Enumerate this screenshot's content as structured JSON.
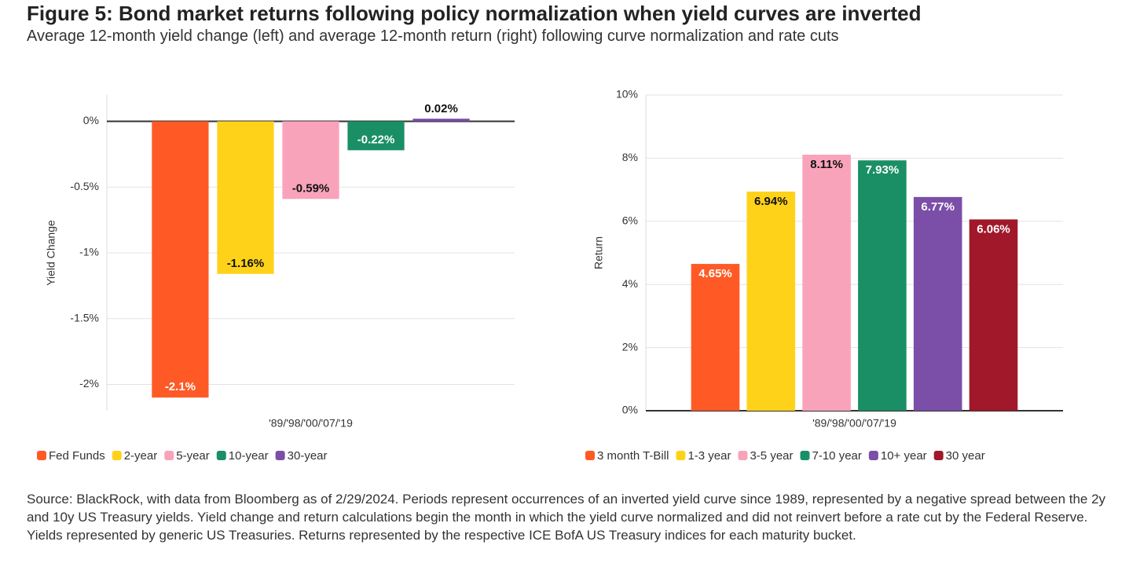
{
  "title": "Figure 5: Bond market returns following policy normalization when yield curves are inverted",
  "subtitle": "Average 12-month yield change (left) and average 12-month return (right) following curve normalization and rate cuts",
  "source": "Source: BlackRock, with data from Bloomberg as of 2/29/2024. Periods represent occurrences of an inverted yield curve since 1989, represented by a negative spread between the 2y and 10y US Treasury yields. Yield change and return calculations begin the month in which the yield curve normalized and did not reinvert before a rate cut by the Federal Reserve. Yields represented by generic US Treasuries. Returns represented by the respective ICE BofA US Treasury indices for each maturity bucket.",
  "chart_data": [
    {
      "type": "bar",
      "y_label": "Yield Change",
      "categories": [
        "'89/'98/'00/'07/'19"
      ],
      "series": [
        {
          "name": "Fed Funds",
          "color": "#ff5a26",
          "values": [
            -2.1
          ],
          "value_labels": [
            "-2.1%"
          ]
        },
        {
          "name": "2-year",
          "color": "#ffd21a",
          "values": [
            -1.16
          ],
          "value_labels": [
            "-1.16%"
          ]
        },
        {
          "name": "5-year",
          "color": "#f9a3bb",
          "values": [
            -0.59
          ],
          "value_labels": [
            "-0.59%"
          ]
        },
        {
          "name": "10-year",
          "color": "#1a8f66",
          "values": [
            -0.22
          ],
          "value_labels": [
            "-0.22%"
          ]
        },
        {
          "name": "30-year",
          "color": "#7b4ea8",
          "values": [
            0.02
          ],
          "value_labels": [
            "0.02%"
          ]
        }
      ],
      "ylim": [
        -2.2,
        0.2
      ],
      "yticks": [
        {
          "value": 0,
          "label": "0%"
        },
        {
          "value": -0.5,
          "label": "-0.5%"
        },
        {
          "value": -1,
          "label": "-1%"
        },
        {
          "value": -1.5,
          "label": "-1.5%"
        },
        {
          "value": -2,
          "label": "-2%"
        }
      ],
      "grid": true
    },
    {
      "type": "bar",
      "y_label": "Return",
      "categories": [
        "'89/'98/'00/'07/'19"
      ],
      "series": [
        {
          "name": "3 month T-Bill",
          "color": "#ff5a26",
          "values": [
            4.65
          ],
          "value_labels": [
            "4.65%"
          ]
        },
        {
          "name": "1-3 year",
          "color": "#ffd21a",
          "values": [
            6.94
          ],
          "value_labels": [
            "6.94%"
          ]
        },
        {
          "name": "3-5 year",
          "color": "#f9a3bb",
          "values": [
            8.11
          ],
          "value_labels": [
            "8.11%"
          ]
        },
        {
          "name": "7-10 year",
          "color": "#1a8f66",
          "values": [
            7.93
          ],
          "value_labels": [
            "7.93%"
          ]
        },
        {
          "name": "10+ year",
          "color": "#7b4ea8",
          "values": [
            6.77
          ],
          "value_labels": [
            "6.77%"
          ]
        },
        {
          "name": "30 year",
          "color": "#a0182a",
          "values": [
            6.06
          ],
          "value_labels": [
            "6.06%"
          ]
        }
      ],
      "ylim": [
        0,
        10
      ],
      "yticks": [
        {
          "value": 0,
          "label": "0%"
        },
        {
          "value": 2,
          "label": "2%"
        },
        {
          "value": 4,
          "label": "4%"
        },
        {
          "value": 6,
          "label": "6%"
        },
        {
          "value": 8,
          "label": "8%"
        },
        {
          "value": 10,
          "label": "10%"
        }
      ],
      "grid": true
    }
  ]
}
